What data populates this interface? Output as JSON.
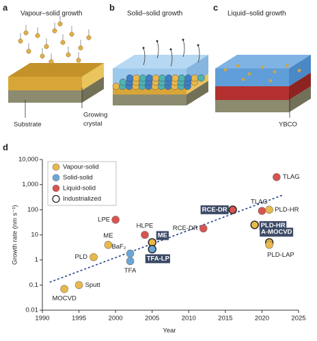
{
  "panels": [
    {
      "letter": "a",
      "title": "Vapour–solid growth",
      "labels": [
        "Substrate",
        "Growing",
        "crystal"
      ]
    },
    {
      "letter": "b",
      "title": "Solid–solid growth"
    },
    {
      "letter": "c",
      "title": "Liquid–solid growth",
      "labels": [
        "YBCO"
      ]
    }
  ],
  "chart_data": {
    "type": "scatter",
    "letter": "d",
    "x_label": "Year",
    "y_label": "Growth rate (nm s⁻¹)",
    "log_y": true,
    "xlim": [
      1990,
      2025
    ],
    "xticks": [
      1990,
      1995,
      2000,
      2005,
      2010,
      2015,
      2020,
      2025
    ],
    "ylim": [
      0.01,
      10000
    ],
    "yticks": [
      0.01,
      0.1,
      1,
      10,
      100,
      {
        "value": 1000,
        "label": "1,000"
      },
      {
        "value": 10000,
        "label": "10,000"
      }
    ],
    "legend_industrialized": "Industrialized",
    "series": [
      {
        "name": "Vapour-solid",
        "color": "#e8b84a",
        "x": [
          1993,
          1995,
          1997,
          1999,
          2005,
          2019,
          2021,
          2021,
          2021
        ],
        "values": [
          0.07,
          0.1,
          1.3,
          4,
          5,
          25,
          100,
          5,
          4
        ],
        "labels": [
          "MOCVD",
          "Sputt",
          "PLD",
          "ME",
          "ME",
          "PLD-HR",
          "PLD-HR",
          "A-MOCVD",
          "PLD-LAP"
        ],
        "industrialized": [
          false,
          false,
          false,
          false,
          true,
          true,
          false,
          true,
          false
        ]
      },
      {
        "name": "Solid-solid",
        "color": "#6aa7d8",
        "x": [
          2002,
          2002,
          2005
        ],
        "values": [
          1.8,
          0.9,
          2.7
        ],
        "labels": [
          "BaF₂",
          "TFA",
          "TFA-LP"
        ],
        "industrialized": [
          false,
          false,
          true
        ]
      },
      {
        "name": "Liquid-solid",
        "color": "#d9534f",
        "x": [
          2000,
          2004,
          2012,
          2016,
          2020,
          2022
        ],
        "values": [
          40,
          10,
          18,
          100,
          90,
          2000
        ],
        "labels": [
          "LPE",
          "HLPE",
          "RCE-DR",
          "RCE-DR",
          "TLAG",
          "TLAG"
        ],
        "industrialized": [
          false,
          false,
          false,
          true,
          false,
          false
        ]
      }
    ],
    "trend": {
      "x": [
        1991,
        2023
      ],
      "values": [
        0.13,
        400
      ]
    }
  }
}
